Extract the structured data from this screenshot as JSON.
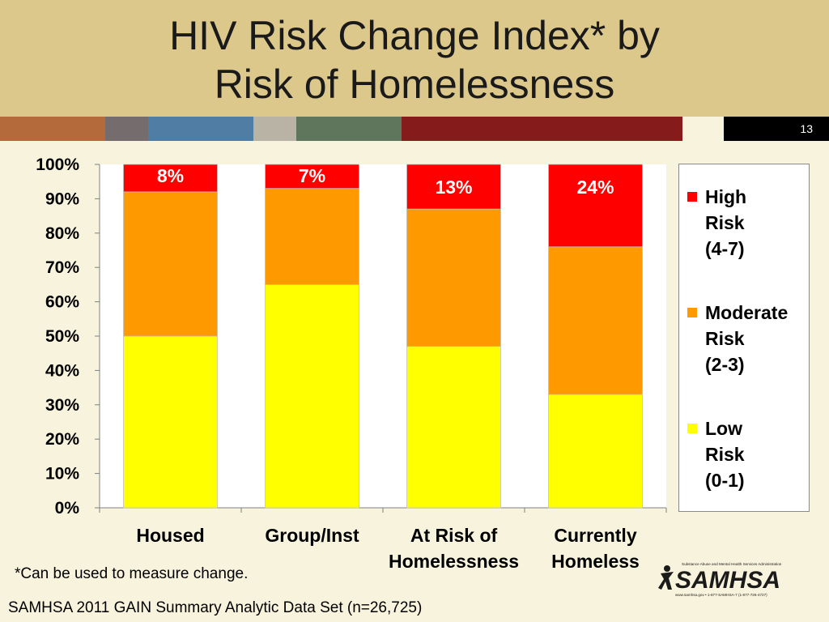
{
  "slide": {
    "title_line1": "HIV Risk Change Index* by",
    "title_line2": "Risk of Homelessness",
    "slide_number": "13",
    "footnote": "*Can be used to measure change.",
    "source": "SAMHSA 2011 GAIN Summary Analytic Data Set (n=26,725)",
    "logo": {
      "name": "samhsa-logo",
      "wordmark": "SAMHSA",
      "tagline": "Substance Abuse and Mental Health Services Administration",
      "contact": "www.samhsa.gov • 1-877-SAMHSA-7 (1-877-726-4727)"
    },
    "stripe_colors": [
      "#b46a3a",
      "#756c6e",
      "#4f7da4",
      "#b9b3a5",
      "#5f765c",
      "#861b1c",
      "#f8f3dc"
    ]
  },
  "chart_data": {
    "type": "bar",
    "stacked": true,
    "title": "HIV Risk Change Index* by Risk of Homelessness",
    "categories": [
      [
        "Housed"
      ],
      [
        "Group/Inst"
      ],
      [
        "At Risk of",
        "Homelessness"
      ],
      [
        "Currently",
        "Homeless"
      ]
    ],
    "series": [
      {
        "name_lines": [
          "Low",
          "Risk",
          "(0-1)"
        ],
        "color": "#ffff00",
        "values": [
          50,
          65,
          47,
          33
        ]
      },
      {
        "name_lines": [
          "Moderate",
          "Risk",
          "(2-3)"
        ],
        "color": "#ff9900",
        "values": [
          42,
          28,
          40,
          43
        ]
      },
      {
        "name_lines": [
          "High",
          "Risk",
          "(4-7)"
        ],
        "color": "#ff0000",
        "values": [
          8,
          7,
          13,
          24
        ]
      }
    ],
    "data_labels": [
      "8%",
      "7%",
      "13%",
      "24%"
    ],
    "y_ticks": [
      "0%",
      "10%",
      "20%",
      "30%",
      "40%",
      "50%",
      "60%",
      "70%",
      "80%",
      "90%",
      "100%"
    ],
    "ylim": [
      0,
      100
    ],
    "legend_position": "right",
    "grid": false
  }
}
